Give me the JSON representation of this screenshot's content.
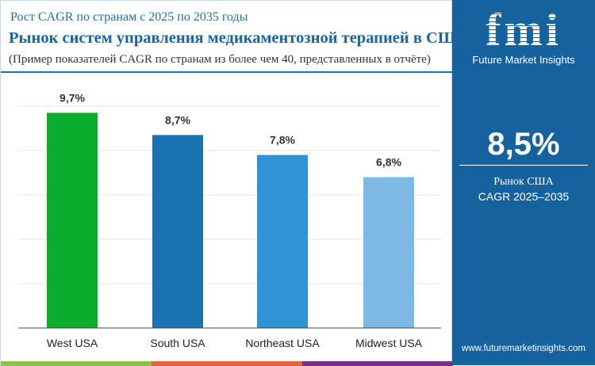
{
  "header": {
    "subtitle": "Рост CAGR по странам с 2025 по 2035 годы",
    "title": "Рынок систем управления медикаментозной терапией в США",
    "note": "(Пример показателей CAGR по странам из более чем 40, представленных в отчёте)"
  },
  "chart_data": {
    "type": "bar",
    "categories": [
      "West USA",
      "South USA",
      "Northeast USA",
      "Midwest USA"
    ],
    "values": [
      9.7,
      8.7,
      7.8,
      6.8
    ],
    "data_labels": [
      "9,7%",
      "8,7%",
      "7,8%",
      "6,8%"
    ],
    "colors": [
      "#0aad2e",
      "#1b72b0",
      "#2f93d6",
      "#7db9e3"
    ],
    "ylim": [
      0,
      10
    ],
    "grid": true,
    "title": "",
    "xlabel": "",
    "ylabel": ""
  },
  "sidebar": {
    "brand_mark": "fmi",
    "brand_name": "Future Market Insights",
    "headline_value": "8,5%",
    "label1": "Рынок США",
    "label2": "CAGR 2025–2035",
    "url": "www.futuremarketinsights.com",
    "background": "#15629f"
  },
  "strips": [
    "#8bc34a",
    "#e8603c",
    "#7b2d8e"
  ]
}
